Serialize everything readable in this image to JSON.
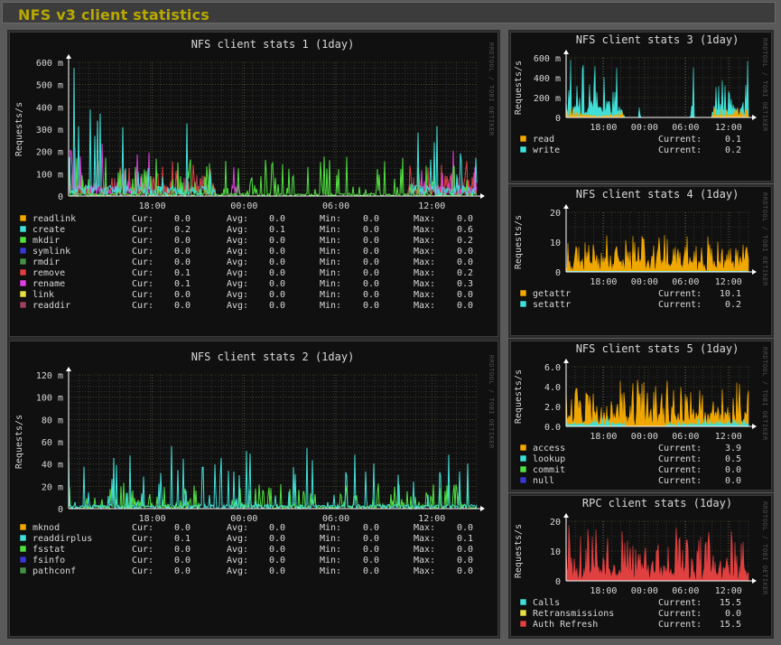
{
  "page_title": "NFS v3 client statistics",
  "watermark": "RRDTOOL / TOBI OETIKER",
  "colors": {
    "bg": "#101010",
    "grid": "#4a4a4a",
    "text": "#d8d8d8",
    "title_text": "#b8a800",
    "orange": "#f0a800",
    "cyan": "#40e0d8",
    "green": "#50e040",
    "blue": "#3838d0",
    "olive": "#489048",
    "red": "#e04040",
    "magenta": "#e040e0",
    "yellow": "#e8e040",
    "maroon": "#a04060"
  },
  "charts": {
    "c1": {
      "title": "NFS client stats 1  (1day)",
      "ylabel": "Requests/s",
      "yticks": [
        "0",
        "100 m",
        "200 m",
        "300 m",
        "400 m",
        "500 m",
        "600 m"
      ],
      "xticks": [
        "18:00",
        "00:00",
        "06:00",
        "12:00"
      ],
      "legend": [
        {
          "name": "readlink",
          "color": "#f0a800",
          "cur": "0.0",
          "avg": "0.0",
          "min": "0.0",
          "max": "0.0"
        },
        {
          "name": "create",
          "color": "#40e0d8",
          "cur": "0.2",
          "avg": "0.1",
          "min": "0.0",
          "max": "0.6"
        },
        {
          "name": "mkdir",
          "color": "#50e040",
          "cur": "0.0",
          "avg": "0.0",
          "min": "0.0",
          "max": "0.2"
        },
        {
          "name": "symlink",
          "color": "#3838d0",
          "cur": "0.0",
          "avg": "0.0",
          "min": "0.0",
          "max": "0.0"
        },
        {
          "name": "rmdir",
          "color": "#489048",
          "cur": "0.0",
          "avg": "0.0",
          "min": "0.0",
          "max": "0.0"
        },
        {
          "name": "remove",
          "color": "#e04040",
          "cur": "0.1",
          "avg": "0.0",
          "min": "0.0",
          "max": "0.2"
        },
        {
          "name": "rename",
          "color": "#e040e0",
          "cur": "0.1",
          "avg": "0.0",
          "min": "0.0",
          "max": "0.3"
        },
        {
          "name": "link",
          "color": "#e8e040",
          "cur": "0.0",
          "avg": "0.0",
          "min": "0.0",
          "max": "0.0"
        },
        {
          "name": "readdir",
          "color": "#a04060",
          "cur": "0.0",
          "avg": "0.0",
          "min": "0.0",
          "max": "0.0"
        }
      ]
    },
    "c2": {
      "title": "NFS client stats 2  (1day)",
      "ylabel": "Requests/s",
      "yticks": [
        "0",
        "20 m",
        "40 m",
        "60 m",
        "80 m",
        "100 m",
        "120 m"
      ],
      "xticks": [
        "18:00",
        "00:00",
        "06:00",
        "12:00"
      ],
      "legend": [
        {
          "name": "mknod",
          "color": "#f0a800",
          "cur": "0.0",
          "avg": "0.0",
          "min": "0.0",
          "max": "0.0"
        },
        {
          "name": "readdirplus",
          "color": "#40e0d8",
          "cur": "0.1",
          "avg": "0.0",
          "min": "0.0",
          "max": "0.1"
        },
        {
          "name": "fsstat",
          "color": "#50e040",
          "cur": "0.0",
          "avg": "0.0",
          "min": "0.0",
          "max": "0.0"
        },
        {
          "name": "fsinfo",
          "color": "#3838d0",
          "cur": "0.0",
          "avg": "0.0",
          "min": "0.0",
          "max": "0.0"
        },
        {
          "name": "pathconf",
          "color": "#489048",
          "cur": "0.0",
          "avg": "0.0",
          "min": "0.0",
          "max": "0.0"
        }
      ]
    },
    "c3": {
      "title": "NFS client stats 3  (1day)",
      "ylabel": "Requests/s",
      "yticks": [
        "0",
        "200 m",
        "400 m",
        "600 m"
      ],
      "xticks": [
        "18:00",
        "00:00",
        "06:00",
        "12:00"
      ],
      "legend": [
        {
          "name": "read",
          "color": "#f0a800",
          "current": "0.1"
        },
        {
          "name": "write",
          "color": "#40e0d8",
          "current": "0.2"
        }
      ]
    },
    "c4": {
      "title": "NFS client stats 4  (1day)",
      "ylabel": "Requests/s",
      "yticks": [
        "0",
        "10",
        "20"
      ],
      "xticks": [
        "18:00",
        "00:00",
        "06:00",
        "12:00"
      ],
      "legend": [
        {
          "name": "getattr",
          "color": "#f0a800",
          "current": "10.1"
        },
        {
          "name": "setattr",
          "color": "#40e0d8",
          "current": "0.2"
        }
      ]
    },
    "c5": {
      "title": "NFS client stats 5  (1day)",
      "ylabel": "Requests/s",
      "yticks": [
        "0.0",
        "2.0",
        "4.0",
        "6.0"
      ],
      "xticks": [
        "18:00",
        "00:00",
        "06:00",
        "12:00"
      ],
      "legend": [
        {
          "name": "access",
          "color": "#f0a800",
          "current": "3.9"
        },
        {
          "name": "lookup",
          "color": "#40e0d8",
          "current": "0.5"
        },
        {
          "name": "commit",
          "color": "#50e040",
          "current": "0.0"
        },
        {
          "name": "null",
          "color": "#3838d0",
          "current": "0.0"
        }
      ]
    },
    "c6": {
      "title": "RPC client stats  (1day)",
      "ylabel": "Requests/s",
      "yticks": [
        "0",
        "10",
        "20"
      ],
      "xticks": [
        "18:00",
        "00:00",
        "06:00",
        "12:00"
      ],
      "legend": [
        {
          "name": "Calls",
          "color": "#40e0d8",
          "current": "15.5"
        },
        {
          "name": "Retransmissions",
          "color": "#e8e040",
          "current": "0.0"
        },
        {
          "name": "Auth Refresh",
          "color": "#e04040",
          "current": "15.5"
        }
      ]
    }
  },
  "labels": {
    "cur": "Cur:",
    "avg": "Avg:",
    "min": "Min:",
    "max": "Max:",
    "current": "Current:"
  }
}
